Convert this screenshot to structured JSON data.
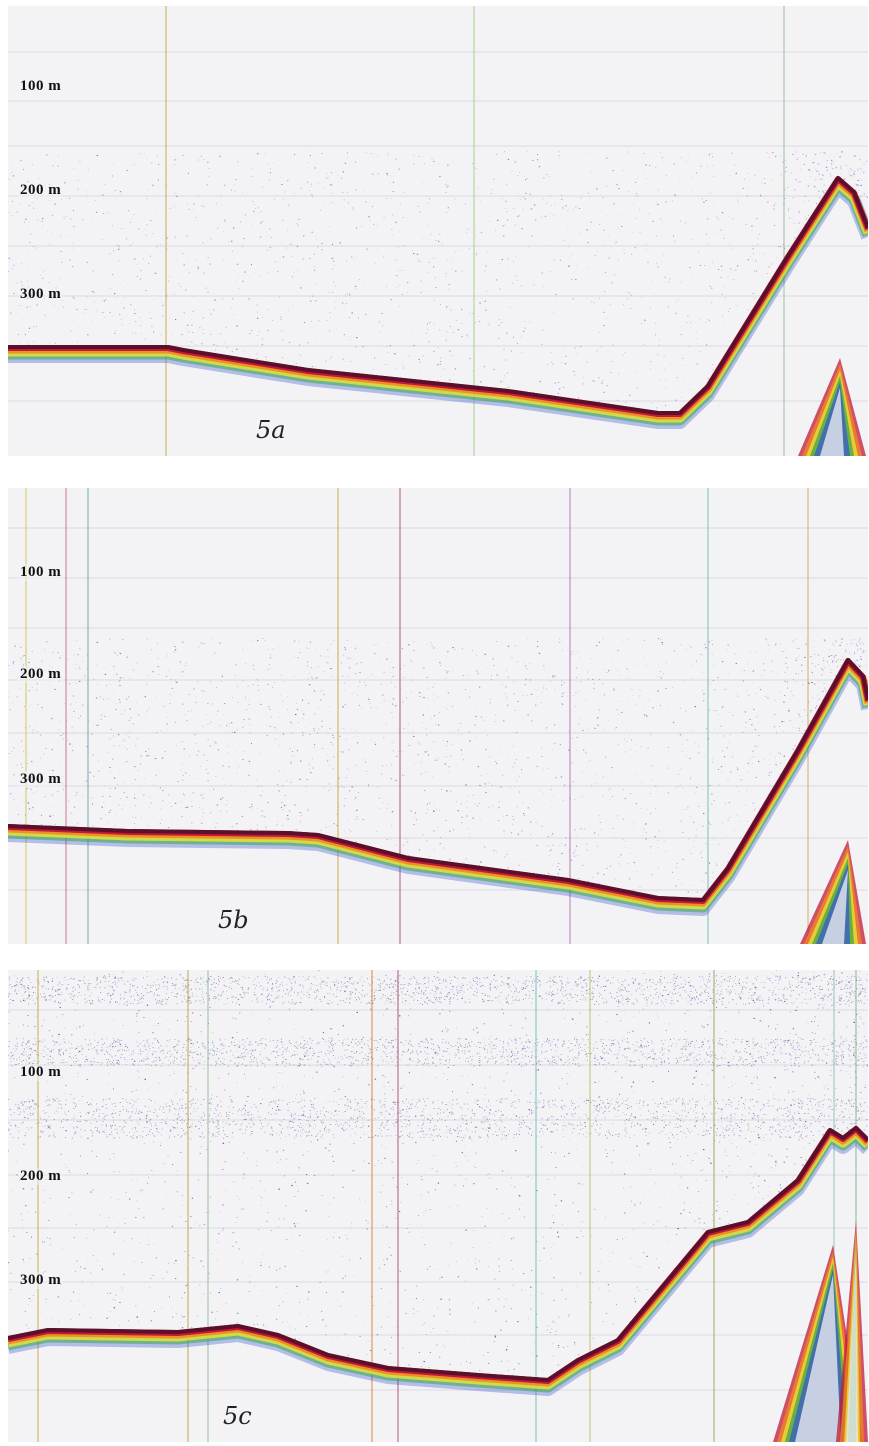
{
  "panels": [
    {
      "id": "panel-a",
      "label": "5a",
      "depth_marks": [
        "100 m",
        "200 m",
        "300 m"
      ]
    },
    {
      "id": "panel-b",
      "label": "5b",
      "depth_marks": [
        "100 m",
        "200 m",
        "300 m"
      ]
    },
    {
      "id": "panel-c",
      "label": "5c",
      "depth_marks": [
        "100 m",
        "200 m",
        "300 m"
      ]
    }
  ],
  "colors": {
    "paper": "#f3f3f6",
    "scatter": "#6b4fa8",
    "bottom_core": "#5a0f2a",
    "bottom_red": "#c2183a",
    "bottom_orange": "#f08a1c",
    "bottom_yellow": "#e8e53a",
    "bottom_green": "#3aa848",
    "bottom_blue": "#3a5ad0",
    "gridline": "#cfd0d8"
  }
}
